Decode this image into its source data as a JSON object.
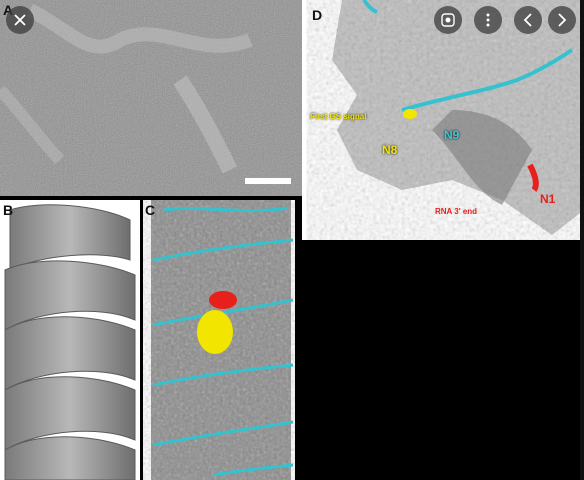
{
  "viewer": {
    "close_icon": "close-icon",
    "lens_icon": "lens-icon",
    "more_icon": "more-vert-icon",
    "prev_icon": "chevron-left-icon",
    "next_icon": "chevron-right-icon"
  },
  "figure": {
    "panels": {
      "a": {
        "letter": "A"
      },
      "b": {
        "letter": "B"
      },
      "c": {
        "letter": "C"
      },
      "d": {
        "letter": "D"
      }
    },
    "labels": {
      "first_gs_signal": "First GS signal",
      "n8": "N8",
      "n9": "N9",
      "n1": "N1",
      "rna_end": "RNA 3' end"
    }
  },
  "colors": {
    "yellow_label": "#f2e600",
    "cyan_label": "#3cc8d8",
    "red_label": "#e8201c",
    "surface_gray": "#bdbdbd",
    "rna_cyan": "#35c2cf"
  }
}
